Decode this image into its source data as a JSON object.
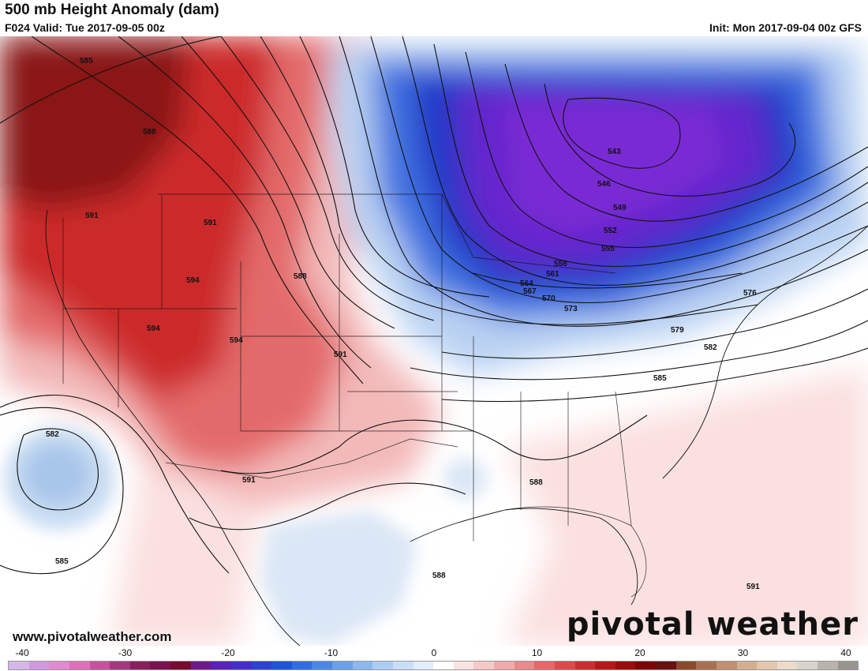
{
  "header": {
    "title": "500 mb Height Anomaly (dam)",
    "valid": "F024 Valid: Tue 2017-09-05 00z",
    "init": "Init: Mon 2017-09-04 00z GFS"
  },
  "footer": {
    "url": "www.pivotalweather.com",
    "brand": "pivotal weather"
  },
  "colorbar": {
    "ticks": [
      "-40",
      "-30",
      "-20",
      "-10",
      "0",
      "10",
      "20",
      "30",
      "40"
    ],
    "colors": [
      "#d6b7e8",
      "#d29ae0",
      "#e08ad0",
      "#e06fb8",
      "#c9509e",
      "#a63680",
      "#8a1f5e",
      "#7c1050",
      "#7a0a30",
      "#6e1a8c",
      "#5a22b5",
      "#4430c8",
      "#2e42d0",
      "#1f55d8",
      "#2f6ee0",
      "#4a88e6",
      "#6aa1ec",
      "#8bb8f0",
      "#abcdf4",
      "#c8dff8",
      "#e2edfa",
      "#ffffff",
      "#fbe3e3",
      "#f6c9c9",
      "#f0aaaa",
      "#ea8a8a",
      "#e36868",
      "#da4a4a",
      "#cc2e2e",
      "#b81818",
      "#9a0d0d",
      "#7a0606",
      "#6a1010",
      "#8a4a2a",
      "#a87050",
      "#c09070",
      "#d4ae90",
      "#e2c6ae",
      "#ecdaca",
      "#d8d4cc",
      "#b8b4ac",
      "#989490"
    ]
  },
  "contour_labels": [
    "585",
    "588",
    "591",
    "591",
    "594",
    "594",
    "594",
    "588",
    "591",
    "543",
    "546",
    "549",
    "552",
    "555",
    "558",
    "561",
    "564",
    "567",
    "570",
    "573",
    "576",
    "579",
    "582",
    "585",
    "582",
    "585",
    "591",
    "588",
    "588",
    "591"
  ],
  "anomaly_colors": {
    "strong_positive": "#8a1010",
    "positive": "#d02a2a",
    "weak_positive": "#f2b6b6",
    "slight_positive": "#fbe2e2",
    "slight_negative": "#d8e6f6",
    "negative": "#4a7fe0",
    "strong_negative": "#2038c8",
    "core_negative": "#6a2ad0"
  }
}
